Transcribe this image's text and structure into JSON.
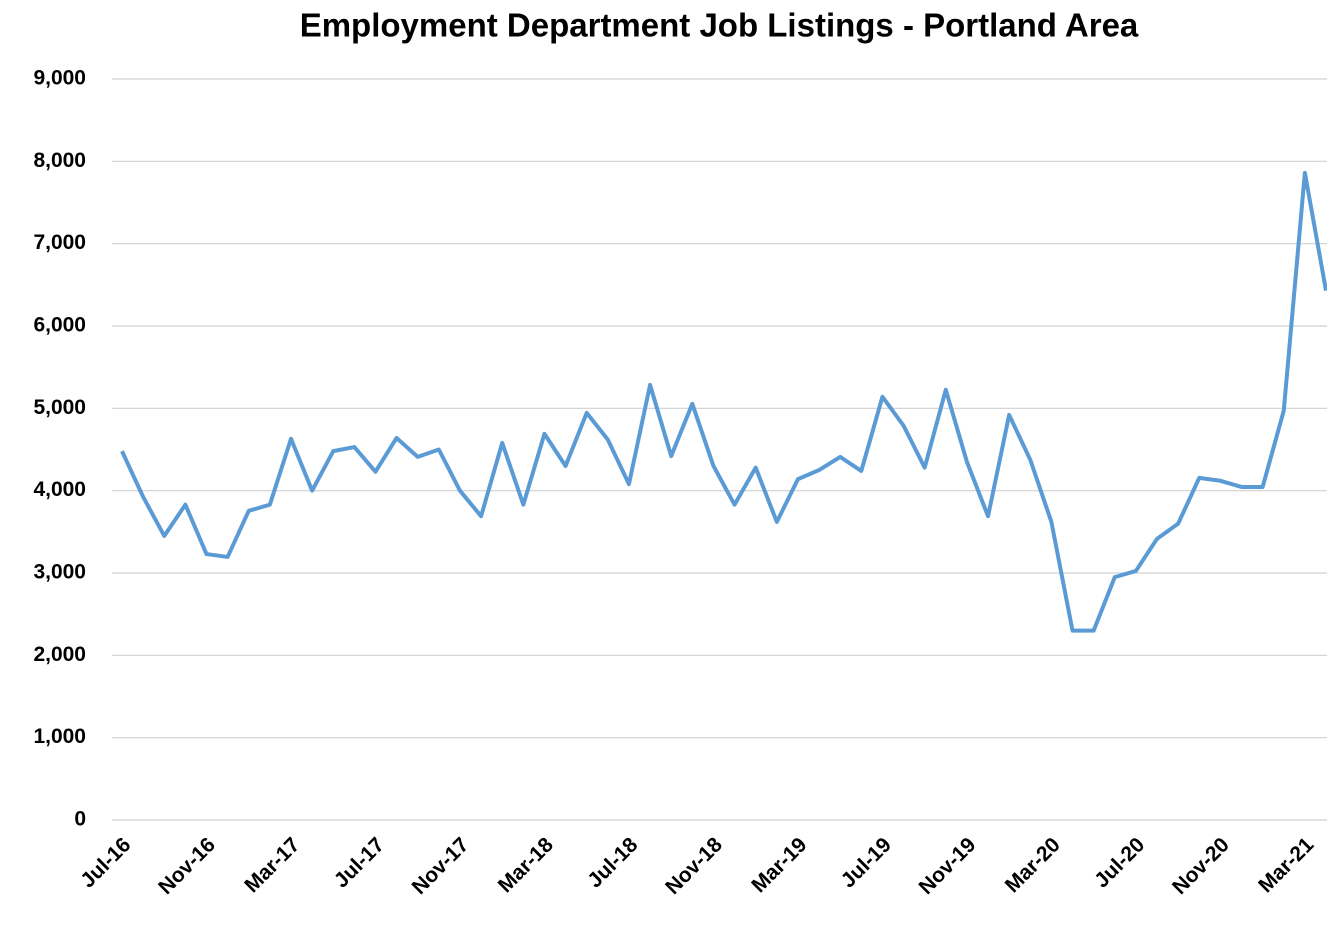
{
  "chart_data": {
    "type": "line",
    "title": "Employment Department Job Listings - Portland Area",
    "categories": [
      "Jul-16",
      null,
      null,
      null,
      "Nov-16",
      null,
      null,
      null,
      "Mar-17",
      null,
      null,
      null,
      "Jul-17",
      null,
      null,
      null,
      "Nov-17",
      null,
      null,
      null,
      "Mar-18",
      null,
      null,
      null,
      "Jul-18",
      null,
      null,
      null,
      "Nov-18",
      null,
      null,
      null,
      "Mar-19",
      null,
      null,
      null,
      "Jul-19",
      null,
      null,
      null,
      "Nov-19",
      null,
      null,
      null,
      "Mar-20",
      null,
      null,
      null,
      "Jul-20",
      null,
      null,
      null,
      "Nov-20",
      null,
      null,
      null,
      "Mar-21",
      null
    ],
    "values": [
      4480,
      3925,
      3450,
      3830,
      3230,
      3195,
      3755,
      3830,
      4630,
      4000,
      4480,
      4530,
      4230,
      4640,
      4410,
      4500,
      4000,
      3690,
      4580,
      3830,
      4690,
      4300,
      4945,
      4620,
      4080,
      5285,
      4420,
      5055,
      4300,
      3830,
      4280,
      3620,
      4140,
      4250,
      4410,
      4240,
      5140,
      4790,
      4280,
      5225,
      4350,
      3690,
      4920,
      4375,
      3620,
      2300,
      2300,
      2950,
      3025,
      3415,
      3600,
      4155,
      4120,
      4045,
      4045,
      4970,
      7860,
      6430
    ],
    "color": "#5b9bd5",
    "ylim": [
      0,
      9000
    ],
    "yticks": [
      0,
      {
        "value": 1000,
        "label": "1,000"
      },
      {
        "value": 2000,
        "label": "2,000"
      },
      {
        "value": 3000,
        "label": "3,000"
      },
      {
        "value": 4000,
        "label": "4,000"
      },
      {
        "value": 5000,
        "label": "5,000"
      },
      {
        "value": 6000,
        "label": "6,000"
      },
      {
        "value": 7000,
        "label": "7,000"
      },
      {
        "value": 8000,
        "label": "8,000"
      },
      {
        "value": 9000,
        "label": "9,000"
      }
    ],
    "grid": true
  }
}
